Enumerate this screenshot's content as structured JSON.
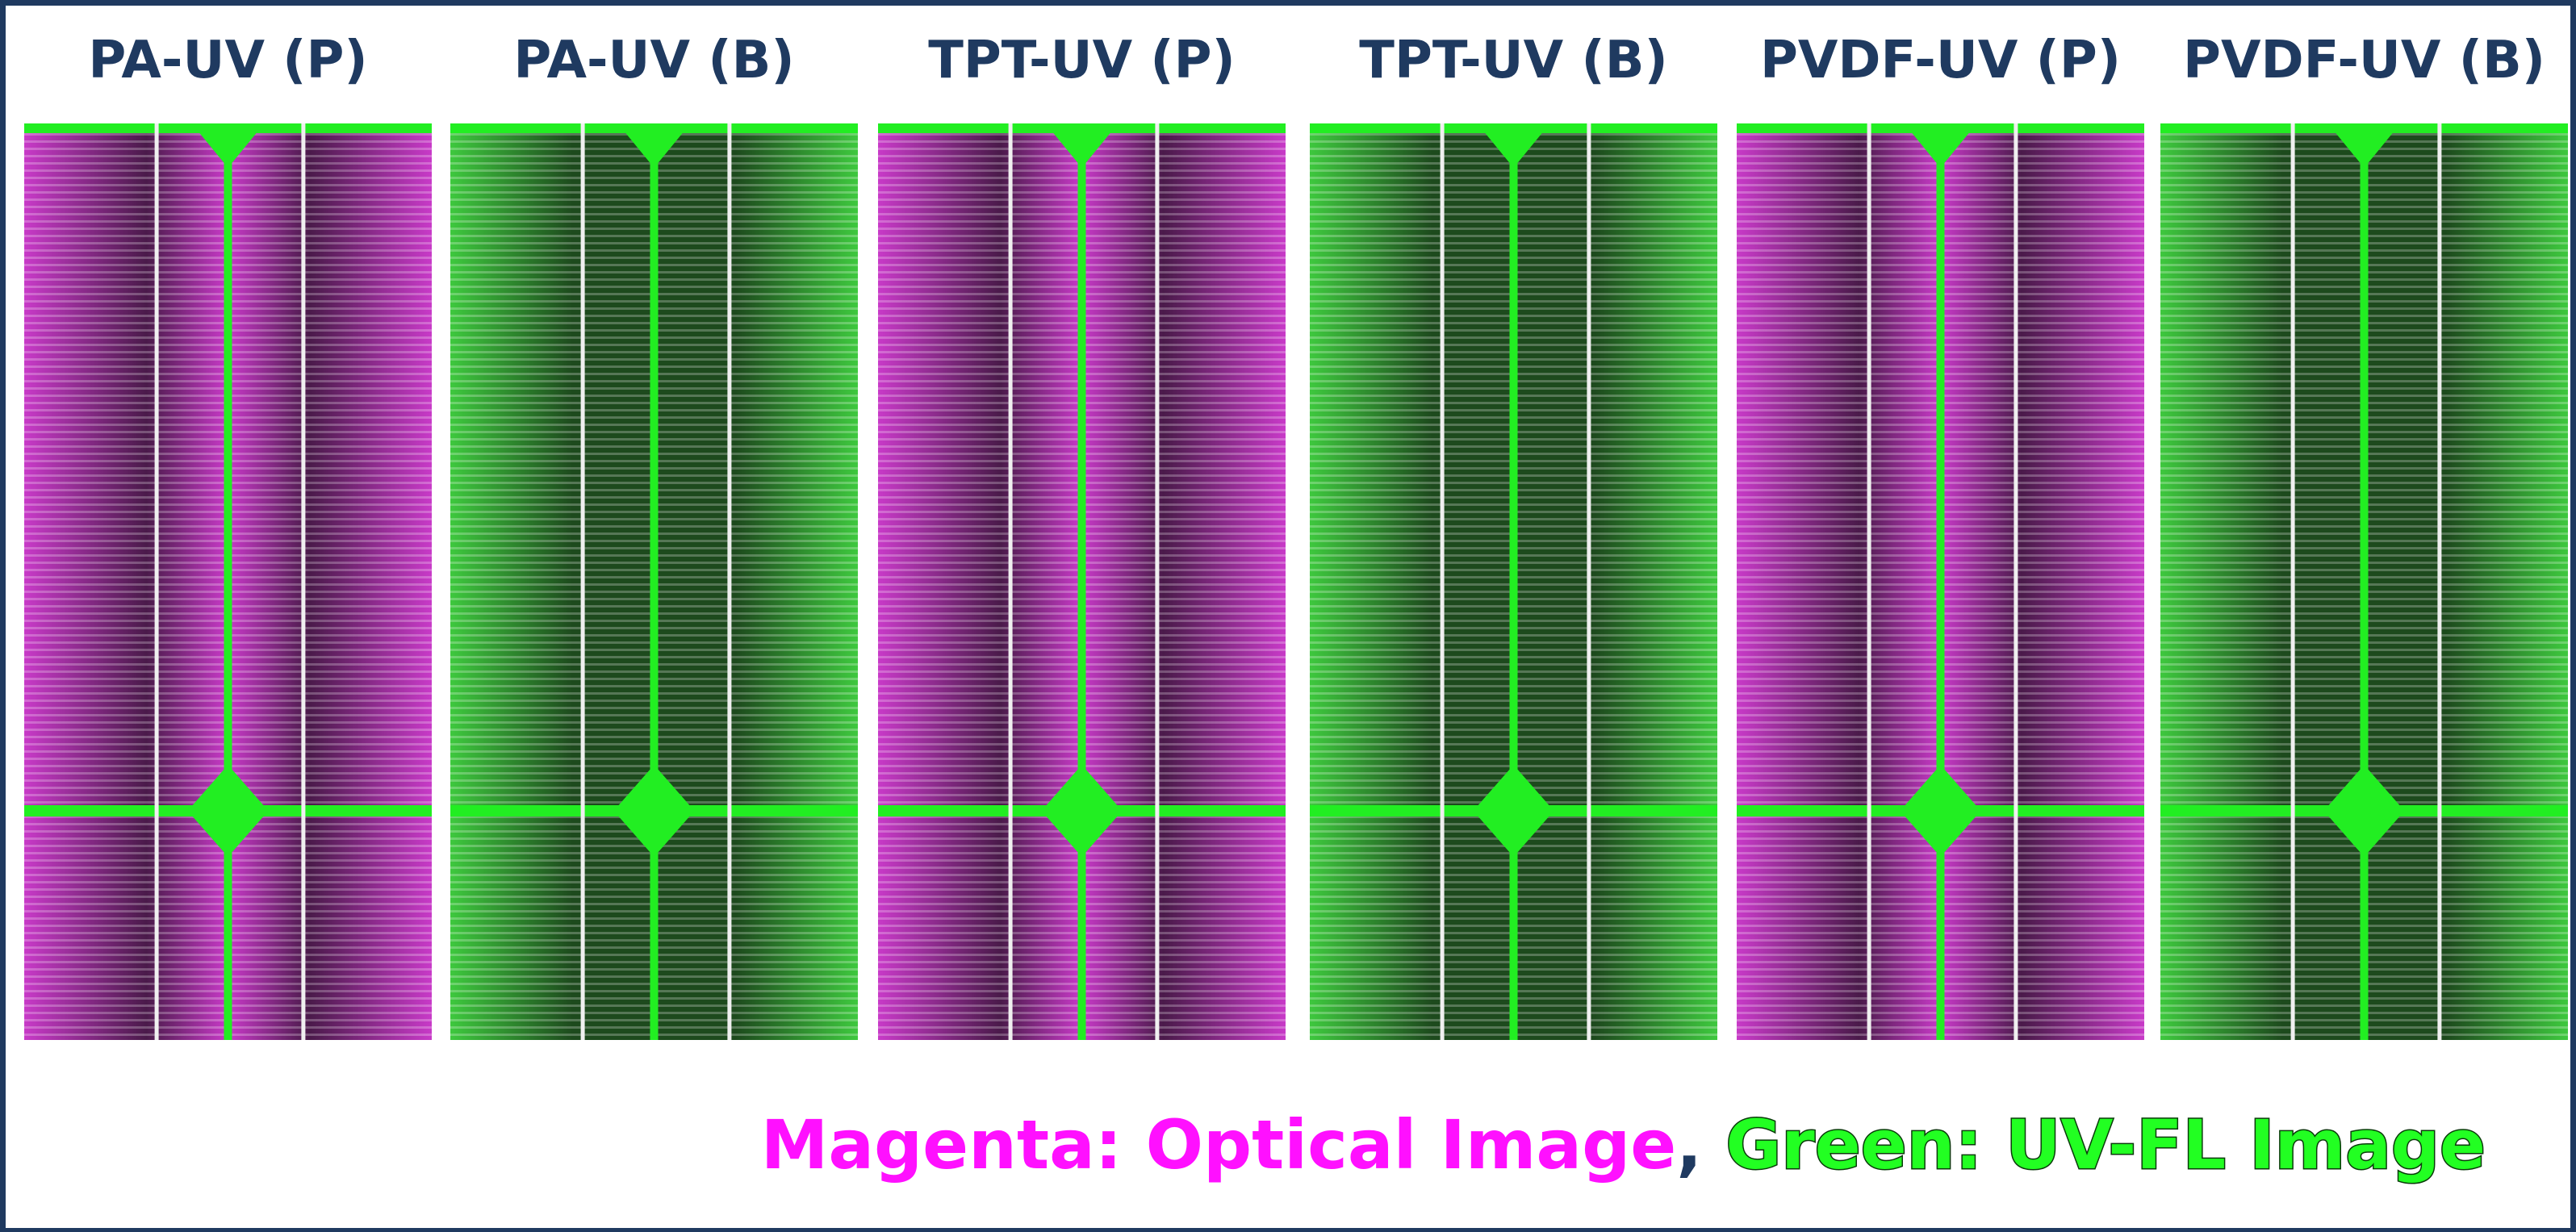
{
  "panels": [
    {
      "label": "PA-UV (P)"
    },
    {
      "label": "PA-UV (B)"
    },
    {
      "label": "TPT-UV (P)"
    },
    {
      "label": "TPT-UV (B)"
    },
    {
      "label": "PVDF-UV (P)"
    },
    {
      "label": "PVDF-UV (B)"
    }
  ],
  "caption": {
    "magenta": "Magenta: Optical Image",
    "separator": ",",
    "green": "Green: UV-FL Image"
  }
}
